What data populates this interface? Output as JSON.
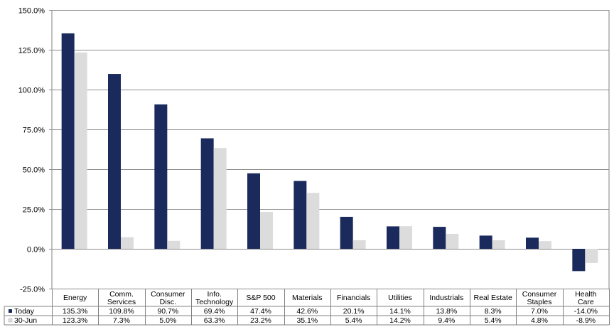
{
  "chart_data": {
    "type": "bar",
    "title": "",
    "xlabel": "",
    "ylabel": "",
    "ylim": [
      -25,
      150
    ],
    "yticks": [
      -25,
      0,
      25,
      50,
      75,
      100,
      125,
      150
    ],
    "ytick_labels": [
      "-25.0%",
      "0.0%",
      "25.0%",
      "50.0%",
      "75.0%",
      "100.0%",
      "125.0%",
      "150.0%"
    ],
    "grid": true,
    "legend": "left (data table)",
    "categories": [
      [
        "Energy"
      ],
      [
        "Comm.",
        "Services"
      ],
      [
        "Consumer",
        "Disc."
      ],
      [
        "Info.",
        "Technology"
      ],
      [
        "S&P 500"
      ],
      [
        "Materials"
      ],
      [
        "Financials"
      ],
      [
        "Utilities"
      ],
      [
        "Industrials"
      ],
      [
        "Real Estate"
      ],
      [
        "Consumer",
        "Staples"
      ],
      [
        "Health",
        "Care"
      ]
    ],
    "series": [
      {
        "name": "Today",
        "color": "#1b2a5c",
        "values": [
          135.3,
          109.8,
          90.7,
          69.4,
          47.4,
          42.6,
          20.1,
          14.1,
          13.8,
          8.3,
          7.0,
          -14.0
        ],
        "labels": [
          "135.3%",
          "109.8%",
          "90.7%",
          "69.4%",
          "47.4%",
          "42.6%",
          "20.1%",
          "14.1%",
          "13.8%",
          "8.3%",
          "7.0%",
          "-14.0%"
        ]
      },
      {
        "name": "30-Jun",
        "color": "#dcdcdc",
        "values": [
          123.3,
          7.3,
          5.0,
          63.3,
          23.2,
          35.1,
          5.4,
          14.2,
          9.4,
          5.4,
          4.8,
          -8.9
        ],
        "labels": [
          "123.3%",
          "7.3%",
          "5.0%",
          "63.3%",
          "23.2%",
          "35.1%",
          "5.4%",
          "14.2%",
          "9.4%",
          "5.4%",
          "4.8%",
          "-8.9%"
        ]
      }
    ]
  }
}
